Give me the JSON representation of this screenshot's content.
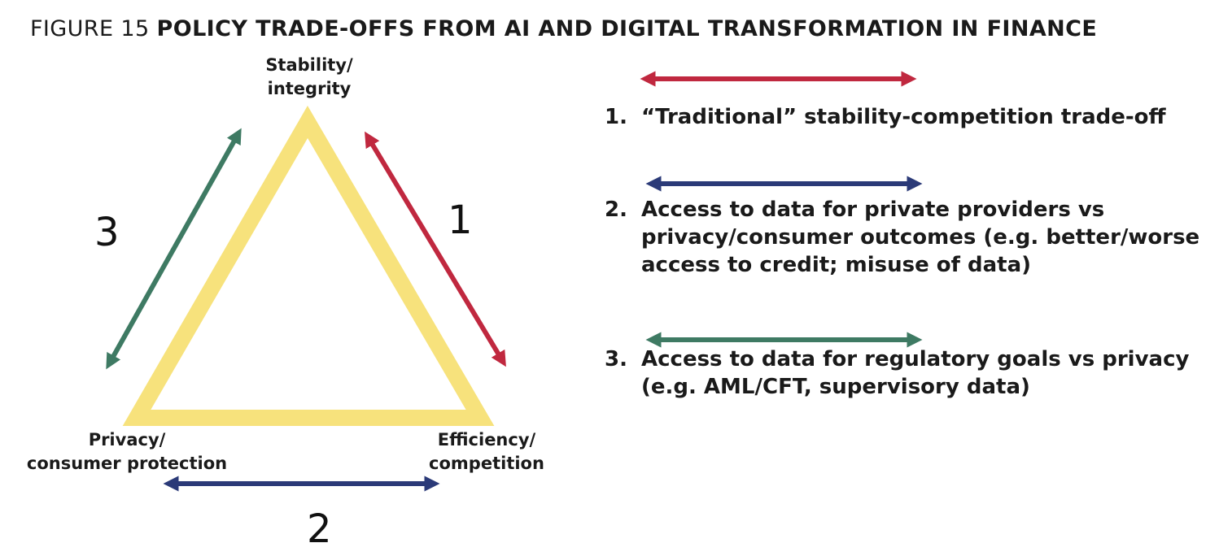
{
  "figure": {
    "number_label": "FIGURE 15",
    "title": "POLICY TRADE-OFFS FROM AI AND DIGITAL TRANSFORMATION IN FINANCE"
  },
  "vertices": {
    "top": {
      "line1": "Stability/",
      "line2": "integrity"
    },
    "left": {
      "line1": "Privacy/",
      "line2": "consumer protection"
    },
    "right": {
      "line1": "Efficiency/",
      "line2": "competition"
    }
  },
  "edge_numbers": {
    "one": "1",
    "two": "2",
    "three": "3"
  },
  "legend": [
    {
      "index": "1.",
      "lines": [
        "“Traditional” stability-competition trade-off"
      ],
      "color": "#c0283f"
    },
    {
      "index": "2.",
      "lines": [
        "Access to data for private providers vs",
        "privacy/consumer outcomes (e.g. better/worse",
        "access to credit; misuse of data)"
      ],
      "color": "#2b3a78"
    },
    {
      "index": "3.",
      "lines": [
        "Access to data for regulatory goals vs privacy",
        "(e.g. AML/CFT, supervisory data)"
      ],
      "color": "#3e7a63"
    }
  ],
  "colors": {
    "triangle": "#f7e27c",
    "arrow_red": "#c0283f",
    "arrow_blue": "#2b3a78",
    "arrow_green": "#3e7a63"
  }
}
